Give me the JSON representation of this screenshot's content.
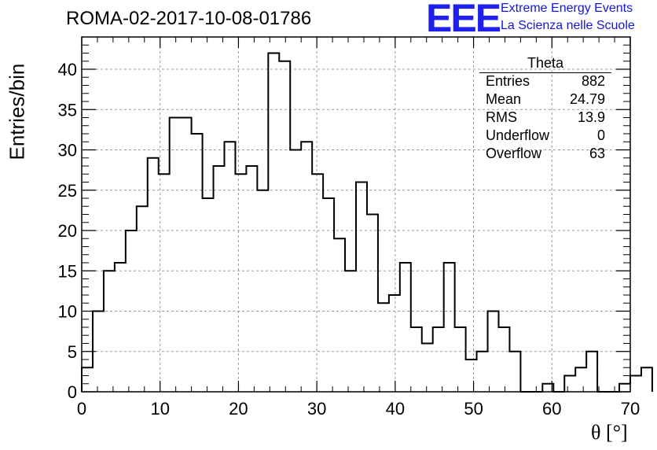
{
  "header": {
    "title": "ROMA-02-2017-10-08-01786",
    "logo_text": "EEE",
    "brand_line1": "Extreme Energy Events",
    "brand_line2": "La Scienza nelle Scuole"
  },
  "stats": {
    "name": "Theta",
    "rows": [
      {
        "key": "Entries",
        "value": "882"
      },
      {
        "key": "Mean",
        "value": "24.79"
      },
      {
        "key": "RMS",
        "value": "13.9"
      },
      {
        "key": "Underflow",
        "value": "0"
      },
      {
        "key": "Overflow",
        "value": "63"
      }
    ]
  },
  "colors": {
    "logo": "#2020ee",
    "brand_text": "#1515e0",
    "histogram_line": "#000000",
    "grid": "#9a9a9a"
  },
  "chart_data": {
    "type": "histogram",
    "xlabel": "θ [°]",
    "ylabel": "Entries/bin",
    "xlim": [
      0,
      70
    ],
    "ylim": [
      0,
      44
    ],
    "x_ticks": [
      0,
      10,
      20,
      30,
      40,
      50,
      60,
      70
    ],
    "y_ticks": [
      0,
      5,
      10,
      15,
      20,
      25,
      30,
      35,
      40
    ],
    "grid": true,
    "bin_width": 1.4,
    "bin_values": [
      3,
      10,
      15,
      16,
      20,
      23,
      29,
      27,
      34,
      34,
      32,
      24,
      28,
      31,
      27,
      28,
      25,
      42,
      41,
      30,
      31,
      27,
      24,
      19,
      15,
      26,
      22,
      11,
      12,
      16,
      8,
      6,
      8,
      16,
      8,
      4,
      5,
      10,
      8,
      5,
      0,
      0,
      1,
      0,
      2,
      3,
      5,
      0,
      0,
      1,
      2,
      3
    ]
  }
}
